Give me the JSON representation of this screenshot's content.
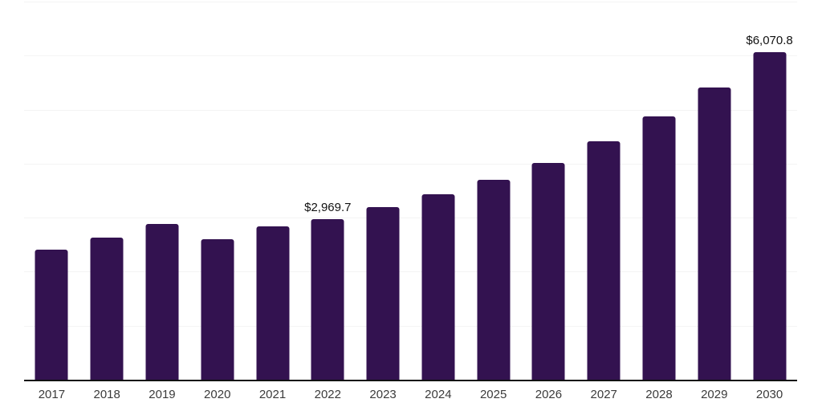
{
  "chart_data": {
    "type": "bar",
    "title": "",
    "xlabel": "",
    "ylabel": "",
    "categories": [
      "2017",
      "2018",
      "2019",
      "2020",
      "2021",
      "2022",
      "2023",
      "2024",
      "2025",
      "2026",
      "2027",
      "2028",
      "2029",
      "2030"
    ],
    "values": [
      2411,
      2633,
      2881,
      2595,
      2841,
      2969.7,
      3189,
      3435,
      3708,
      4014,
      4411,
      4872,
      5416,
      6070.8
    ],
    "annotations": [
      {
        "category": "2022",
        "text": "$2,969.7"
      },
      {
        "category": "2030",
        "text": "$6,070.8"
      }
    ],
    "ylim": [
      0,
      7000
    ],
    "gridline_step": 1000,
    "grid": true,
    "legend": false,
    "colors": {
      "bar": "#331250",
      "axis_line": "#111111",
      "gridline": "#f4f4f4",
      "tick_label": "#3b3b3b",
      "annotation": "#111111",
      "background": "#ffffff"
    }
  }
}
